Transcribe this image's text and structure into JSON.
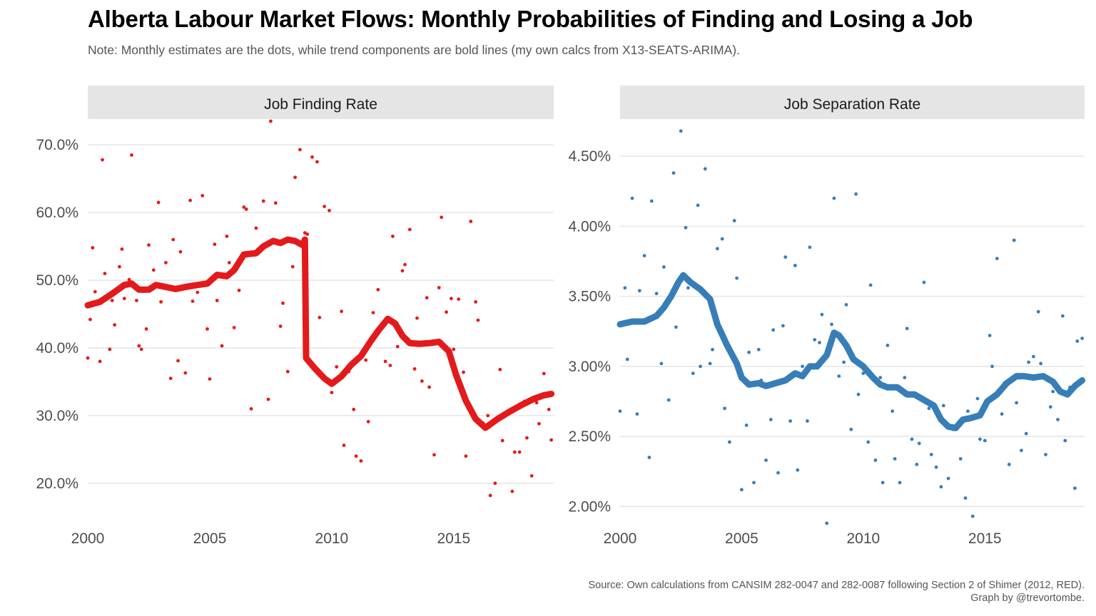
{
  "title": "Alberta Labour Market Flows: Monthly Probabilities of Finding and Losing a Job",
  "subtitle": "Note: Monthly estimates are the dots, while trend components are bold lines (my own calcs from X13-SEATS-ARIMA).",
  "caption": {
    "line1": "Source: Own calculations from CANSIM 282-0047 and 282-0087 following Section 2 of Shimer (2012, RED).",
    "line2": "Graph by @trevortombe."
  },
  "chart_data": [
    {
      "type": "scatter",
      "panel_title": "Job Finding Rate",
      "color": "#e31a1c",
      "xlim": [
        2000,
        2019.1
      ],
      "ylim": [
        14.5,
        73.5
      ],
      "x_ticks": [
        2000,
        2005,
        2010,
        2015
      ],
      "x_tick_labels": [
        "2000",
        "2005",
        "2010",
        "2015"
      ],
      "y_ticks": [
        20,
        30,
        40,
        50,
        60,
        70
      ],
      "y_tick_labels": [
        "20.0%",
        "30.0%",
        "40.0%",
        "50.0%",
        "60.0%",
        "70.0%"
      ],
      "grid": true,
      "trend": {
        "x": [
          2000.0,
          2000.5,
          2001.0,
          2001.5,
          2001.8,
          2002.1,
          2002.5,
          2002.8,
          2003.2,
          2003.6,
          2004.0,
          2004.5,
          2004.9,
          2005.3,
          2005.7,
          2006.0,
          2006.4,
          2006.9,
          2007.2,
          2007.6,
          2007.9,
          2008.2,
          2008.5,
          2008.8,
          2008.9,
          2008.95,
          2009.3,
          2009.7,
          2010.0,
          2010.4,
          2010.8,
          2011.2,
          2011.6,
          2011.9,
          2012.3,
          2012.6,
          2012.9,
          2013.2,
          2013.6,
          2014.0,
          2014.4,
          2014.8,
          2015.1,
          2015.5,
          2015.9,
          2016.3,
          2016.8,
          2017.3,
          2017.8,
          2018.3,
          2018.7,
          2019.0
        ],
        "y": [
          46.3,
          46.8,
          48.0,
          49.3,
          49.5,
          48.6,
          48.6,
          49.3,
          49.0,
          48.7,
          49.0,
          49.3,
          49.5,
          50.8,
          50.6,
          51.5,
          53.8,
          54.0,
          55.0,
          55.8,
          55.5,
          56.0,
          55.8,
          55.2,
          56.0,
          38.5,
          37.0,
          35.5,
          34.7,
          35.8,
          37.5,
          38.8,
          41.0,
          42.5,
          44.3,
          43.6,
          41.8,
          40.7,
          40.6,
          40.7,
          40.9,
          39.5,
          36.0,
          32.2,
          29.5,
          28.2,
          29.5,
          30.6,
          31.6,
          32.5,
          33.0,
          33.2
        ]
      },
      "points": {
        "x": [
          2000.0,
          2000.1,
          2000.2,
          2000.3,
          2000.5,
          2000.6,
          2000.7,
          2000.9,
          2001.0,
          2001.1,
          2001.3,
          2001.4,
          2001.5,
          2001.7,
          2001.8,
          2002.0,
          2002.1,
          2002.2,
          2002.4,
          2002.5,
          2002.7,
          2002.9,
          2003.0,
          2003.2,
          2003.4,
          2003.5,
          2003.7,
          2003.8,
          2004.0,
          2004.2,
          2004.3,
          2004.5,
          2004.7,
          2004.9,
          2005.0,
          2005.2,
          2005.3,
          2005.5,
          2005.7,
          2005.8,
          2006.0,
          2006.2,
          2006.4,
          2006.5,
          2006.7,
          2006.9,
          2007.0,
          2007.2,
          2007.4,
          2007.5,
          2007.7,
          2007.9,
          2008.0,
          2008.2,
          2008.4,
          2008.5,
          2008.7,
          2008.9,
          2009.0,
          2009.2,
          2009.4,
          2009.5,
          2009.7,
          2009.9,
          2010.0,
          2010.2,
          2010.4,
          2010.5,
          2010.7,
          2010.9,
          2011.0,
          2011.2,
          2011.4,
          2011.5,
          2011.7,
          2011.9,
          2012.0,
          2012.2,
          2012.4,
          2012.5,
          2012.7,
          2012.9,
          2013.0,
          2013.2,
          2013.4,
          2013.5,
          2013.7,
          2013.9,
          2014.0,
          2014.2,
          2014.4,
          2014.5,
          2014.7,
          2014.9,
          2015.0,
          2015.2,
          2015.4,
          2015.5,
          2015.7,
          2015.9,
          2016.0,
          2016.2,
          2016.4,
          2016.5,
          2016.7,
          2016.9,
          2017.0,
          2017.2,
          2017.4,
          2017.5,
          2017.7,
          2017.9,
          2018.0,
          2018.2,
          2018.4,
          2018.5,
          2018.7,
          2018.9,
          2019.0
        ],
        "y": [
          38.5,
          44.2,
          54.8,
          48.3,
          38.0,
          67.8,
          51.0,
          39.8,
          47.0,
          43.4,
          52.0,
          54.6,
          47.3,
          50.1,
          68.5,
          47.0,
          40.3,
          39.8,
          42.8,
          55.2,
          51.5,
          61.5,
          46.8,
          52.6,
          35.5,
          56.0,
          38.1,
          54.2,
          36.3,
          61.8,
          46.9,
          48.2,
          62.5,
          42.8,
          35.4,
          55.3,
          47.0,
          40.3,
          56.5,
          52.6,
          43.0,
          48.5,
          60.8,
          60.5,
          31.0,
          57.7,
          54.0,
          61.7,
          32.4,
          73.5,
          61.4,
          43.2,
          46.6,
          36.5,
          52.0,
          65.2,
          69.3,
          57.0,
          56.8,
          68.2,
          67.5,
          44.5,
          60.9,
          60.3,
          33.4,
          37.2,
          45.4,
          25.6,
          36.5,
          30.9,
          24.0,
          23.3,
          38.2,
          29.1,
          45.2,
          48.6,
          42.8,
          38.0,
          37.4,
          56.5,
          40.2,
          51.4,
          52.3,
          57.5,
          36.9,
          44.4,
          35.1,
          47.4,
          34.2,
          24.2,
          48.9,
          59.3,
          45.3,
          47.3,
          39.8,
          47.2,
          36.4,
          24.0,
          58.7,
          46.8,
          44.1,
          28.9,
          30.0,
          18.2,
          20.0,
          36.8,
          26.3,
          30.2,
          18.8,
          24.6,
          24.6,
          32.1,
          26.7,
          21.1,
          31.9,
          28.8,
          36.2,
          30.9,
          26.4
        ]
      }
    },
    {
      "type": "scatter",
      "panel_title": "Job Separation Rate",
      "color": "#377eb8",
      "xlim": [
        2000,
        2019.1
      ],
      "ylim": [
        1.9,
        4.75
      ],
      "x_ticks": [
        2000,
        2005,
        2010,
        2015
      ],
      "x_tick_labels": [
        "2000",
        "2005",
        "2010",
        "2015"
      ],
      "y_ticks": [
        2.0,
        2.5,
        3.0,
        3.5,
        4.0,
        4.5
      ],
      "y_tick_labels": [
        "2.00%",
        "2.50%",
        "3.00%",
        "3.50%",
        "4.00%",
        "4.50%"
      ],
      "grid": true,
      "trend": {
        "x": [
          2000.0,
          2000.5,
          2001.0,
          2001.5,
          2001.8,
          2002.1,
          2002.4,
          2002.6,
          2002.9,
          2003.3,
          2003.7,
          2004.0,
          2004.4,
          2004.8,
          2005.0,
          2005.3,
          2005.7,
          2006.0,
          2006.4,
          2006.8,
          2007.2,
          2007.5,
          2007.8,
          2008.1,
          2008.5,
          2008.8,
          2009.0,
          2009.3,
          2009.6,
          2010.0,
          2010.4,
          2010.7,
          2011.0,
          2011.4,
          2011.8,
          2012.1,
          2012.5,
          2012.9,
          2013.2,
          2013.5,
          2013.8,
          2014.1,
          2014.4,
          2014.8,
          2015.1,
          2015.5,
          2015.9,
          2016.3,
          2016.6,
          2017.0,
          2017.4,
          2017.8,
          2018.1,
          2018.4,
          2018.7,
          2019.0
        ],
        "y": [
          3.3,
          3.32,
          3.32,
          3.36,
          3.42,
          3.5,
          3.6,
          3.65,
          3.6,
          3.55,
          3.48,
          3.3,
          3.15,
          3.02,
          2.92,
          2.87,
          2.88,
          2.86,
          2.88,
          2.9,
          2.95,
          2.93,
          3.0,
          3.0,
          3.08,
          3.24,
          3.22,
          3.15,
          3.05,
          3.0,
          2.92,
          2.87,
          2.85,
          2.85,
          2.8,
          2.8,
          2.76,
          2.72,
          2.62,
          2.57,
          2.56,
          2.62,
          2.63,
          2.65,
          2.75,
          2.8,
          2.88,
          2.93,
          2.93,
          2.92,
          2.93,
          2.89,
          2.82,
          2.8,
          2.86,
          2.9
        ]
      },
      "points": {
        "x": [
          2000.0,
          2000.2,
          2000.3,
          2000.5,
          2000.7,
          2000.8,
          2001.0,
          2001.2,
          2001.3,
          2001.5,
          2001.7,
          2001.8,
          2002.0,
          2002.2,
          2002.3,
          2002.5,
          2002.7,
          2002.8,
          2003.0,
          2003.2,
          2003.3,
          2003.5,
          2003.7,
          2003.8,
          2004.0,
          2004.2,
          2004.3,
          2004.5,
          2004.7,
          2004.8,
          2005.0,
          2005.2,
          2005.3,
          2005.5,
          2005.7,
          2005.8,
          2006.0,
          2006.2,
          2006.3,
          2006.5,
          2006.7,
          2006.8,
          2007.0,
          2007.2,
          2007.3,
          2007.5,
          2007.7,
          2007.8,
          2008.0,
          2008.2,
          2008.3,
          2008.5,
          2008.7,
          2008.8,
          2009.0,
          2009.2,
          2009.3,
          2009.5,
          2009.7,
          2009.8,
          2010.0,
          2010.2,
          2010.3,
          2010.5,
          2010.7,
          2010.8,
          2011.0,
          2011.2,
          2011.3,
          2011.5,
          2011.7,
          2011.8,
          2012.0,
          2012.2,
          2012.3,
          2012.5,
          2012.7,
          2012.8,
          2013.0,
          2013.2,
          2013.3,
          2013.5,
          2013.7,
          2013.8,
          2014.0,
          2014.2,
          2014.3,
          2014.5,
          2014.7,
          2014.8,
          2015.0,
          2015.2,
          2015.3,
          2015.5,
          2015.7,
          2015.8,
          2016.0,
          2016.2,
          2016.3,
          2016.5,
          2016.7,
          2016.8,
          2017.0,
          2017.2,
          2017.3,
          2017.5,
          2017.7,
          2017.8,
          2018.0,
          2018.2,
          2018.3,
          2018.5,
          2018.7,
          2018.8,
          2019.0
        ],
        "y": [
          2.68,
          3.56,
          3.05,
          4.2,
          2.66,
          3.54,
          3.79,
          2.35,
          4.18,
          3.52,
          3.02,
          3.71,
          2.76,
          4.38,
          3.28,
          4.68,
          3.99,
          3.56,
          2.95,
          4.15,
          3.0,
          4.41,
          3.02,
          3.12,
          3.84,
          3.91,
          2.7,
          2.46,
          4.04,
          3.63,
          2.12,
          2.58,
          3.1,
          2.17,
          3.12,
          2.9,
          2.33,
          2.62,
          3.26,
          2.24,
          3.29,
          3.78,
          2.61,
          3.72,
          2.26,
          3.0,
          2.61,
          3.85,
          3.19,
          3.17,
          3.37,
          1.88,
          3.3,
          4.2,
          2.93,
          3.03,
          3.44,
          2.55,
          4.23,
          2.8,
          2.95,
          2.46,
          3.58,
          2.33,
          2.92,
          2.17,
          3.15,
          2.68,
          2.34,
          2.17,
          2.92,
          3.27,
          2.48,
          2.3,
          2.45,
          3.6,
          2.7,
          2.37,
          2.28,
          2.14,
          2.72,
          2.2,
          2.55,
          2.56,
          2.34,
          2.06,
          2.68,
          1.93,
          2.77,
          2.48,
          2.47,
          3.22,
          3.0,
          3.77,
          2.66,
          2.88,
          2.3,
          3.9,
          2.74,
          2.4,
          2.52,
          3.03,
          3.07,
          3.39,
          3.02,
          2.37,
          2.71,
          2.82,
          2.62,
          3.36,
          2.47,
          2.85,
          2.13,
          3.18,
          3.2
        ]
      }
    }
  ]
}
